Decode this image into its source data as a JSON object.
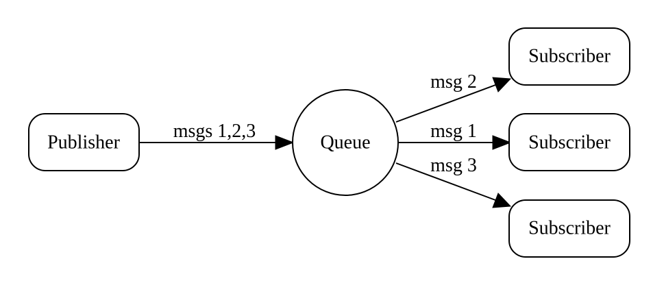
{
  "nodes": {
    "publisher": {
      "label": "Publisher"
    },
    "queue": {
      "label": "Queue"
    },
    "subscriber_top": {
      "label": "Subscriber"
    },
    "subscriber_middle": {
      "label": "Subscriber"
    },
    "subscriber_bottom": {
      "label": "Subscriber"
    }
  },
  "edges": {
    "publisher_to_queue": {
      "label": "msgs 1,2,3"
    },
    "queue_to_subscriber_top": {
      "label": "msg 2"
    },
    "queue_to_subscriber_middle": {
      "label": "msg 1"
    },
    "queue_to_subscriber_bottom": {
      "label": "msg 3"
    }
  }
}
